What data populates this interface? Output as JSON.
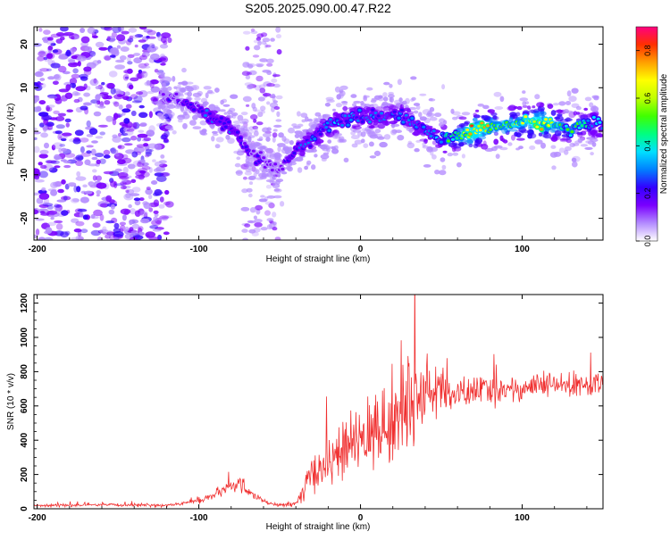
{
  "figure_title": "S205.2025.090.00.47.R22",
  "chart_data": [
    {
      "type": "heatmap",
      "title": "",
      "xlabel": "Height of straight line (km)",
      "ylabel": "Frequency (Hz)",
      "xlim": [
        -202,
        150
      ],
      "ylim": [
        -25,
        24
      ],
      "x_ticks": [
        -200,
        -100,
        0,
        100
      ],
      "y_ticks": [
        -20,
        -10,
        0,
        10,
        20
      ],
      "colorbar": {
        "label": "Normalized spectral amplitude",
        "range": [
          0,
          0.9
        ],
        "ticks": [
          0.0,
          0.2,
          0.4,
          0.6,
          0.8
        ],
        "colors": [
          "#ffffff",
          "#b38bff",
          "#7a00ff",
          "#3300ff",
          "#0080ff",
          "#00e0ff",
          "#00ff80",
          "#40ff00",
          "#c0ff00",
          "#ffff00",
          "#ffa000",
          "#ff3000",
          "#ff0080"
        ]
      },
      "ridge": {
        "x": [
          -120,
          -110,
          -100,
          -90,
          -80,
          -70,
          -60,
          -50,
          -45,
          -40,
          -30,
          -20,
          -10,
          0,
          10,
          20,
          30,
          40,
          50,
          60,
          70,
          80,
          90,
          100,
          110,
          120,
          130,
          140,
          150
        ],
        "y": [
          8,
          7,
          5,
          3,
          1,
          -4,
          -7,
          -9,
          -6,
          -4,
          -2,
          1,
          3,
          3,
          3,
          4,
          3,
          0,
          -2,
          -1,
          0,
          1,
          1.5,
          2,
          2,
          1.5,
          0.5,
          2,
          1
        ],
        "amplitude": [
          0.15,
          0.2,
          0.22,
          0.25,
          0.25,
          0.2,
          0.18,
          0.15,
          0.2,
          0.25,
          0.28,
          0.3,
          0.3,
          0.3,
          0.28,
          0.27,
          0.28,
          0.3,
          0.35,
          0.5,
          0.75,
          0.6,
          0.55,
          0.55,
          0.7,
          0.55,
          0.45,
          0.4,
          0.3
        ]
      }
    },
    {
      "type": "line",
      "title": "",
      "xlabel": "Height of straight line (km)",
      "ylabel": "SNR (10 * v/v)",
      "xlim": [
        -202,
        150
      ],
      "ylim": [
        0,
        1250
      ],
      "x_ticks": [
        -200,
        -100,
        0,
        100
      ],
      "y_ticks": [
        0,
        200,
        400,
        600,
        800,
        1000,
        1200
      ],
      "color": "#f03030",
      "series": [
        {
          "x": [
            -200,
            -180,
            -160,
            -140,
            -120,
            -110,
            -100,
            -90,
            -80,
            -75,
            -70,
            -60,
            -50,
            -40,
            -35,
            -30,
            -20,
            -10,
            0,
            10,
            20,
            30,
            40,
            50,
            60,
            70,
            80,
            90,
            100,
            110,
            120,
            130,
            140,
            150
          ],
          "values": [
            20,
            20,
            22,
            22,
            20,
            30,
            50,
            80,
            130,
            150,
            110,
            40,
            20,
            30,
            100,
            200,
            280,
            340,
            400,
            450,
            520,
            620,
            700,
            680,
            660,
            690,
            690,
            700,
            700,
            720,
            720,
            720,
            720,
            720
          ],
          "spread": [
            10,
            10,
            10,
            10,
            10,
            12,
            20,
            30,
            40,
            50,
            40,
            15,
            10,
            20,
            80,
            120,
            150,
            180,
            200,
            250,
            300,
            350,
            200,
            150,
            100,
            100,
            100,
            80,
            80,
            80,
            80,
            80,
            80,
            80
          ]
        }
      ]
    }
  ]
}
